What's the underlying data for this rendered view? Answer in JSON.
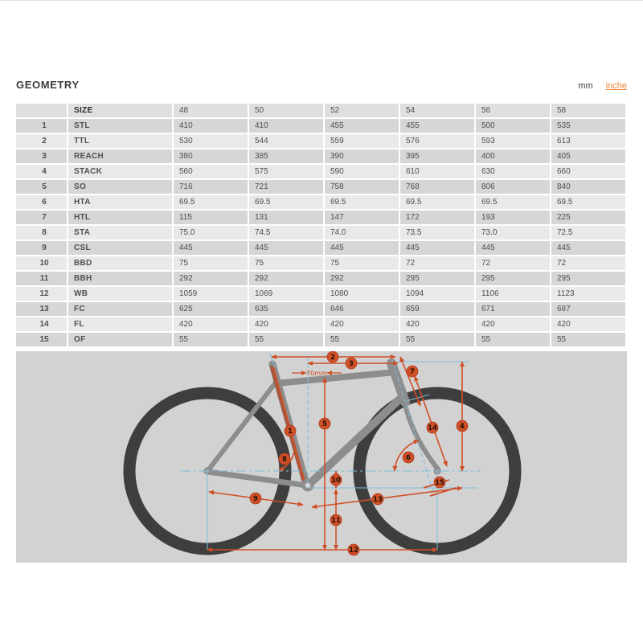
{
  "header": {
    "title": "GEOMETRY",
    "unit_mm": "mm",
    "unit_inches": "inche"
  },
  "table": {
    "columns": [
      "SIZE",
      "48",
      "50",
      "52",
      "54",
      "56",
      "58"
    ],
    "rows": [
      {
        "num": "1",
        "label": "STL",
        "values": [
          "410",
          "410",
          "455",
          "455",
          "500",
          "535"
        ]
      },
      {
        "num": "2",
        "label": "TTL",
        "values": [
          "530",
          "544",
          "559",
          "576",
          "593",
          "613"
        ]
      },
      {
        "num": "3",
        "label": "REACH",
        "values": [
          "380",
          "385",
          "390",
          "395",
          "400",
          "405"
        ]
      },
      {
        "num": "4",
        "label": "STACK",
        "values": [
          "560",
          "575",
          "590",
          "610",
          "630",
          "660"
        ]
      },
      {
        "num": "5",
        "label": "SO",
        "values": [
          "716",
          "721",
          "758",
          "768",
          "806",
          "840"
        ]
      },
      {
        "num": "6",
        "label": "HTA",
        "values": [
          "69.5",
          "69.5",
          "69.5",
          "69.5",
          "69.5",
          "69.5"
        ]
      },
      {
        "num": "7",
        "label": "HTL",
        "values": [
          "115",
          "131",
          "147",
          "172",
          "193",
          "225"
        ]
      },
      {
        "num": "8",
        "label": "STA",
        "values": [
          "75.0",
          "74.5",
          "74.0",
          "73.5",
          "73.0",
          "72.5"
        ]
      },
      {
        "num": "9",
        "label": "CSL",
        "values": [
          "445",
          "445",
          "445",
          "445",
          "445",
          "445"
        ]
      },
      {
        "num": "10",
        "label": "BBD",
        "values": [
          "75",
          "75",
          "75",
          "72",
          "72",
          "72"
        ]
      },
      {
        "num": "11",
        "label": "BBH",
        "values": [
          "292",
          "292",
          "292",
          "295",
          "295",
          "295"
        ]
      },
      {
        "num": "12",
        "label": "WB",
        "values": [
          "1059",
          "1069",
          "1080",
          "1094",
          "1106",
          "1123"
        ]
      },
      {
        "num": "13",
        "label": "FC",
        "values": [
          "625",
          "635",
          "646",
          "659",
          "671",
          "687"
        ]
      },
      {
        "num": "14",
        "label": "FL",
        "values": [
          "420",
          "420",
          "420",
          "420",
          "420",
          "420"
        ]
      },
      {
        "num": "15",
        "label": "OF",
        "values": [
          "55",
          "55",
          "55",
          "55",
          "55",
          "55"
        ]
      }
    ]
  },
  "diagram": {
    "annotation_70mm": "70mm",
    "markers": [
      "1",
      "2",
      "3",
      "4",
      "5",
      "6",
      "7",
      "8",
      "9",
      "10",
      "11",
      "12",
      "13",
      "14",
      "15"
    ],
    "colors": {
      "background": "#d2d2d2",
      "wheel": "#3e3e3e",
      "frame": "#8d8d8d",
      "seat_tube_highlight": "#a05a42",
      "dimension": "#cf4f27",
      "construction": "#7cbdd9",
      "link_orange": "#ef8334"
    }
  }
}
